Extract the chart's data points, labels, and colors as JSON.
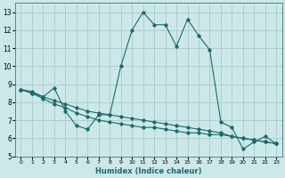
{
  "title": "",
  "xlabel": "Humidex (Indice chaleur)",
  "ylabel": "",
  "background_color": "#cce8e8",
  "grid_color": "#aacccc",
  "line_color": "#1a6b6b",
  "xlim": [
    -0.5,
    23.5
  ],
  "ylim": [
    5,
    13.5
  ],
  "xticks": [
    0,
    1,
    2,
    3,
    4,
    5,
    6,
    7,
    8,
    9,
    10,
    11,
    12,
    13,
    14,
    15,
    16,
    17,
    18,
    19,
    20,
    21,
    22,
    23
  ],
  "yticks": [
    5,
    6,
    7,
    8,
    9,
    10,
    11,
    12,
    13
  ],
  "series": [
    [
      8.7,
      8.6,
      8.3,
      8.8,
      7.5,
      6.7,
      6.5,
      7.3,
      7.3,
      10.0,
      12.0,
      13.0,
      12.3,
      12.3,
      11.1,
      12.6,
      11.7,
      10.9,
      6.9,
      6.6,
      5.4,
      5.8,
      6.1,
      5.7
    ],
    [
      8.7,
      8.5,
      8.3,
      8.1,
      7.9,
      7.7,
      7.5,
      7.4,
      7.3,
      7.2,
      7.1,
      7.0,
      6.9,
      6.8,
      6.7,
      6.6,
      6.5,
      6.4,
      6.3,
      6.1,
      6.0,
      5.9,
      5.8,
      5.7
    ],
    [
      8.7,
      8.5,
      8.2,
      7.9,
      7.7,
      7.4,
      7.2,
      7.0,
      6.9,
      6.8,
      6.7,
      6.6,
      6.6,
      6.5,
      6.4,
      6.3,
      6.3,
      6.2,
      6.2,
      6.1,
      6.0,
      5.9,
      5.8,
      5.7
    ]
  ]
}
